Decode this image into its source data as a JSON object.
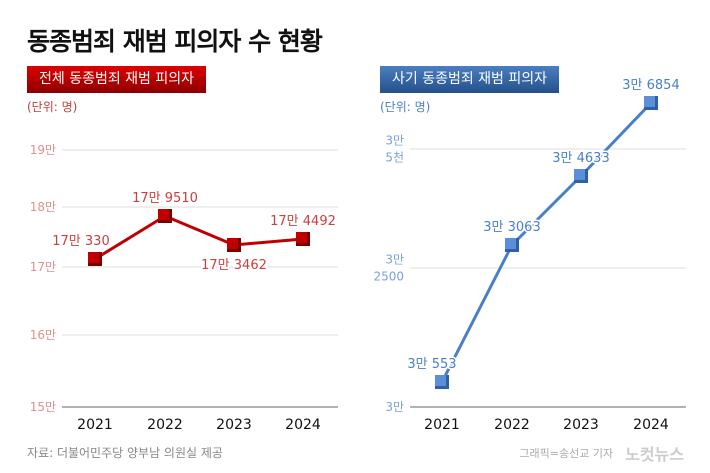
{
  "title": "동종범죄 재범 피의자 수 현황",
  "source": "자료: 더불어민주당 양부남 의원실 제공",
  "credit": "그래픽=송선교 기자",
  "logo": "노컷뉴스",
  "chart_data": [
    {
      "type": "line",
      "title": "전체 동종범죄 재범 피의자",
      "unit": "(단위: 명)",
      "color": "#c00000",
      "categories": [
        "2021",
        "2022",
        "2023",
        "2024"
      ],
      "values": [
        170330,
        179510,
        173462,
        174492
      ],
      "data_labels": [
        "17만 330",
        "17만 9510",
        "17만 3462",
        "17만 4492"
      ],
      "y_ticks": [
        {
          "value": 150000,
          "label": "15만"
        },
        {
          "value": 160000,
          "label": "16만"
        },
        {
          "value": 170000,
          "label": "17만"
        },
        {
          "value": 180000,
          "label": "18만"
        },
        {
          "value": 190000,
          "label": "19만"
        }
      ]
    },
    {
      "type": "line",
      "title": "사기 동종범죄 재범 피의자",
      "unit": "(단위: 명)",
      "color": "#4a7fc8",
      "categories": [
        "2021",
        "2022",
        "2023",
        "2024"
      ],
      "values": [
        30553,
        33063,
        34633,
        36854
      ],
      "data_labels": [
        "3만 553",
        "3만 3063",
        "3만 4633",
        "3만 6854"
      ],
      "y_ticks": [
        {
          "value": 30000,
          "label": "3만"
        },
        {
          "value": 32500,
          "label": "3만\n2500"
        },
        {
          "value": 35000,
          "label": "3만\n5천"
        }
      ]
    }
  ]
}
